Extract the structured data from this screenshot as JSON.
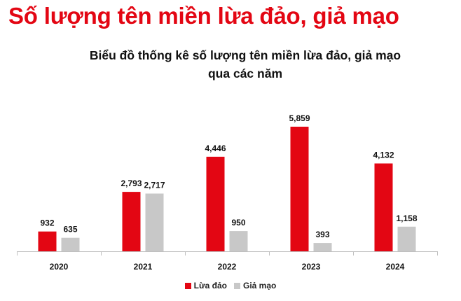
{
  "page": {
    "heading": "Số lượng tên miền lừa đảo, giả mạo"
  },
  "chart_data": {
    "type": "bar",
    "title_lines": [
      "Biểu đồ thống kê số lượng tên miền lừa đảo, giả mạo",
      "qua các năm"
    ],
    "categories": [
      "2020",
      "2021",
      "2022",
      "2023",
      "2024"
    ],
    "series": [
      {
        "name": "Lừa đảo",
        "color": "#e30613",
        "values": [
          932,
          2793,
          4446,
          5859,
          4132
        ],
        "labels": [
          "932",
          "2,793",
          "4,446",
          "5,859",
          "4,132"
        ]
      },
      {
        "name": "Giả mạo",
        "color": "#c8c8c8",
        "values": [
          635,
          2717,
          950,
          393,
          1158
        ],
        "labels": [
          "635",
          "2,717",
          "950",
          "393",
          "1,158"
        ]
      }
    ],
    "xlabel": "",
    "ylabel": "",
    "ylim": [
      0,
      6000
    ],
    "y_axis_visible": false,
    "grid": false,
    "legend_position": "bottom"
  }
}
